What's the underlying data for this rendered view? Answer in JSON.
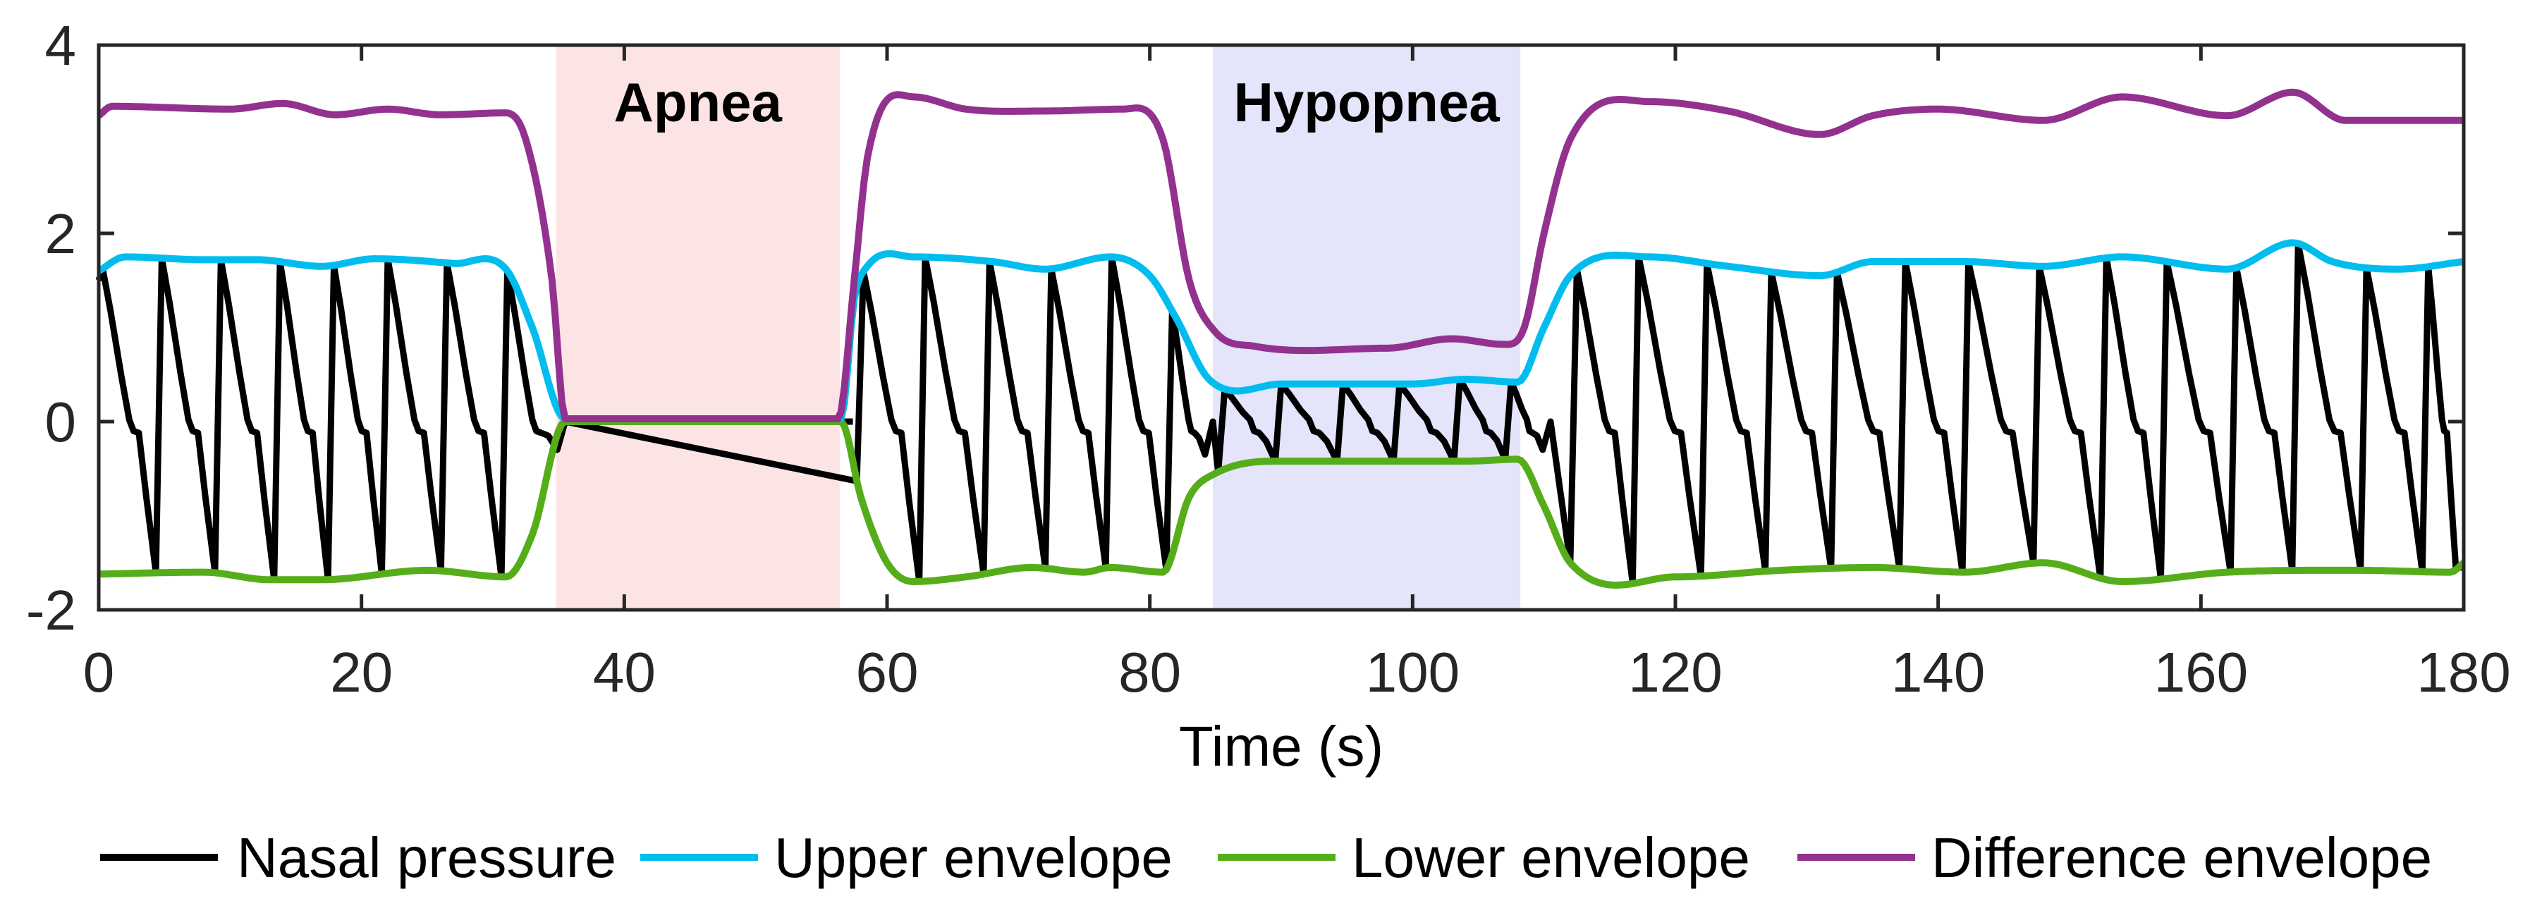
{
  "chart_data": {
    "type": "line",
    "title": "",
    "xlabel": "Time (s)",
    "ylabel": "",
    "xlim": [
      0,
      180
    ],
    "ylim": [
      -2,
      4
    ],
    "xticks": [
      0,
      20,
      40,
      60,
      80,
      100,
      120,
      140,
      160,
      180
    ],
    "yticks": [
      -2,
      0,
      2,
      4
    ],
    "grid": false,
    "legend_position": "bottom",
    "regions": [
      {
        "label": "Apnea",
        "start": 34.8,
        "end": 56.4,
        "color": "#fde4e4"
      },
      {
        "label": "Hypopnea",
        "start": 84.8,
        "end": 108.2,
        "color": "#e4e4fa"
      }
    ],
    "series": [
      {
        "name": "Nasal pressure",
        "color": "#000000",
        "start_value": 1.5,
        "segments": [
          {
            "peaks": [
              0.3,
              4.8,
              9.3,
              13.8,
              17.9,
              22.0,
              26.5,
              31.1
            ],
            "end": 35.5,
            "end_trough": -0.3
          },
          {
            "peaks": [
              58.2,
              62.9,
              67.8,
              72.5,
              77.1,
              81.7
            ],
            "end": 84.8,
            "end_trough": -0.35
          },
          {
            "peaks": [
              85.7,
              90.0,
              94.7,
              99.0,
              103.6,
              107.5
            ],
            "end": 110.5,
            "end_trough": -0.3
          },
          {
            "peaks": [
              112.5,
              117.2,
              122.4,
              127.3,
              132.3,
              137.5,
              142.3,
              147.7,
              152.8,
              157.4,
              162.7,
              167.4,
              172.6,
              177.3
            ],
            "end": 180,
            "end_trough": -1.55
          }
        ]
      },
      {
        "name": "Upper envelope",
        "color": "#00bdee",
        "x": [
          0,
          2,
          8,
          12,
          17,
          21,
          27,
          31,
          33,
          35.5,
          56.5,
          57.5,
          58.5,
          62,
          68,
          72,
          77,
          80,
          82,
          84.5,
          90,
          100,
          104,
          108,
          110,
          112,
          118,
          124,
          131,
          135,
          142,
          148,
          154,
          162,
          167,
          170,
          175,
          180
        ],
        "y": [
          1.6,
          1.75,
          1.72,
          1.72,
          1.65,
          1.73,
          1.68,
          1.62,
          1.0,
          0.03,
          0.03,
          1.3,
          1.65,
          1.75,
          1.7,
          1.62,
          1.75,
          1.55,
          1.1,
          0.45,
          0.4,
          0.4,
          0.45,
          0.42,
          1.0,
          1.55,
          1.75,
          1.65,
          1.55,
          1.7,
          1.7,
          1.65,
          1.75,
          1.62,
          1.9,
          1.7,
          1.62,
          1.7
        ]
      },
      {
        "name": "Lower envelope",
        "color": "#56ad1a",
        "x": [
          0,
          8,
          13,
          17,
          25,
          31,
          33,
          35.5,
          56.5,
          58,
          60,
          62,
          66,
          71,
          75,
          77,
          81,
          83,
          85,
          90,
          100,
          104,
          108,
          110,
          112,
          120,
          128,
          135,
          142,
          148,
          154,
          162,
          172,
          179,
          180
        ],
        "y": [
          -1.62,
          -1.6,
          -1.68,
          -1.68,
          -1.58,
          -1.65,
          -1.2,
          0.0,
          0.0,
          -0.8,
          -1.5,
          -1.7,
          -1.65,
          -1.55,
          -1.6,
          -1.55,
          -1.6,
          -0.8,
          -0.55,
          -0.42,
          -0.42,
          -0.42,
          -0.4,
          -0.9,
          -1.5,
          -1.65,
          -1.58,
          -1.55,
          -1.6,
          -1.5,
          -1.7,
          -1.6,
          -1.58,
          -1.6,
          -1.5
        ]
      },
      {
        "name": "Difference envelope",
        "color": "#93318f",
        "x": [
          0,
          1,
          10,
          14,
          18,
          22,
          26,
          31,
          32.5,
          34.5,
          35.5,
          56.3,
          57.5,
          58.5,
          62,
          66,
          72,
          78,
          81,
          83,
          85,
          88,
          98,
          103,
          107,
          108.5,
          110,
          112,
          118,
          124,
          131,
          135,
          140,
          148,
          154,
          162,
          167,
          171,
          180
        ],
        "y": [
          3.25,
          3.35,
          3.32,
          3.38,
          3.26,
          3.32,
          3.26,
          3.28,
          3.0,
          1.5,
          0.03,
          0.03,
          1.5,
          2.8,
          3.45,
          3.32,
          3.3,
          3.32,
          3.0,
          1.5,
          0.95,
          0.8,
          0.78,
          0.88,
          0.82,
          1.0,
          2.0,
          3.0,
          3.4,
          3.3,
          3.05,
          3.25,
          3.32,
          3.2,
          3.45,
          3.25,
          3.5,
          3.2,
          3.2
        ]
      }
    ]
  }
}
